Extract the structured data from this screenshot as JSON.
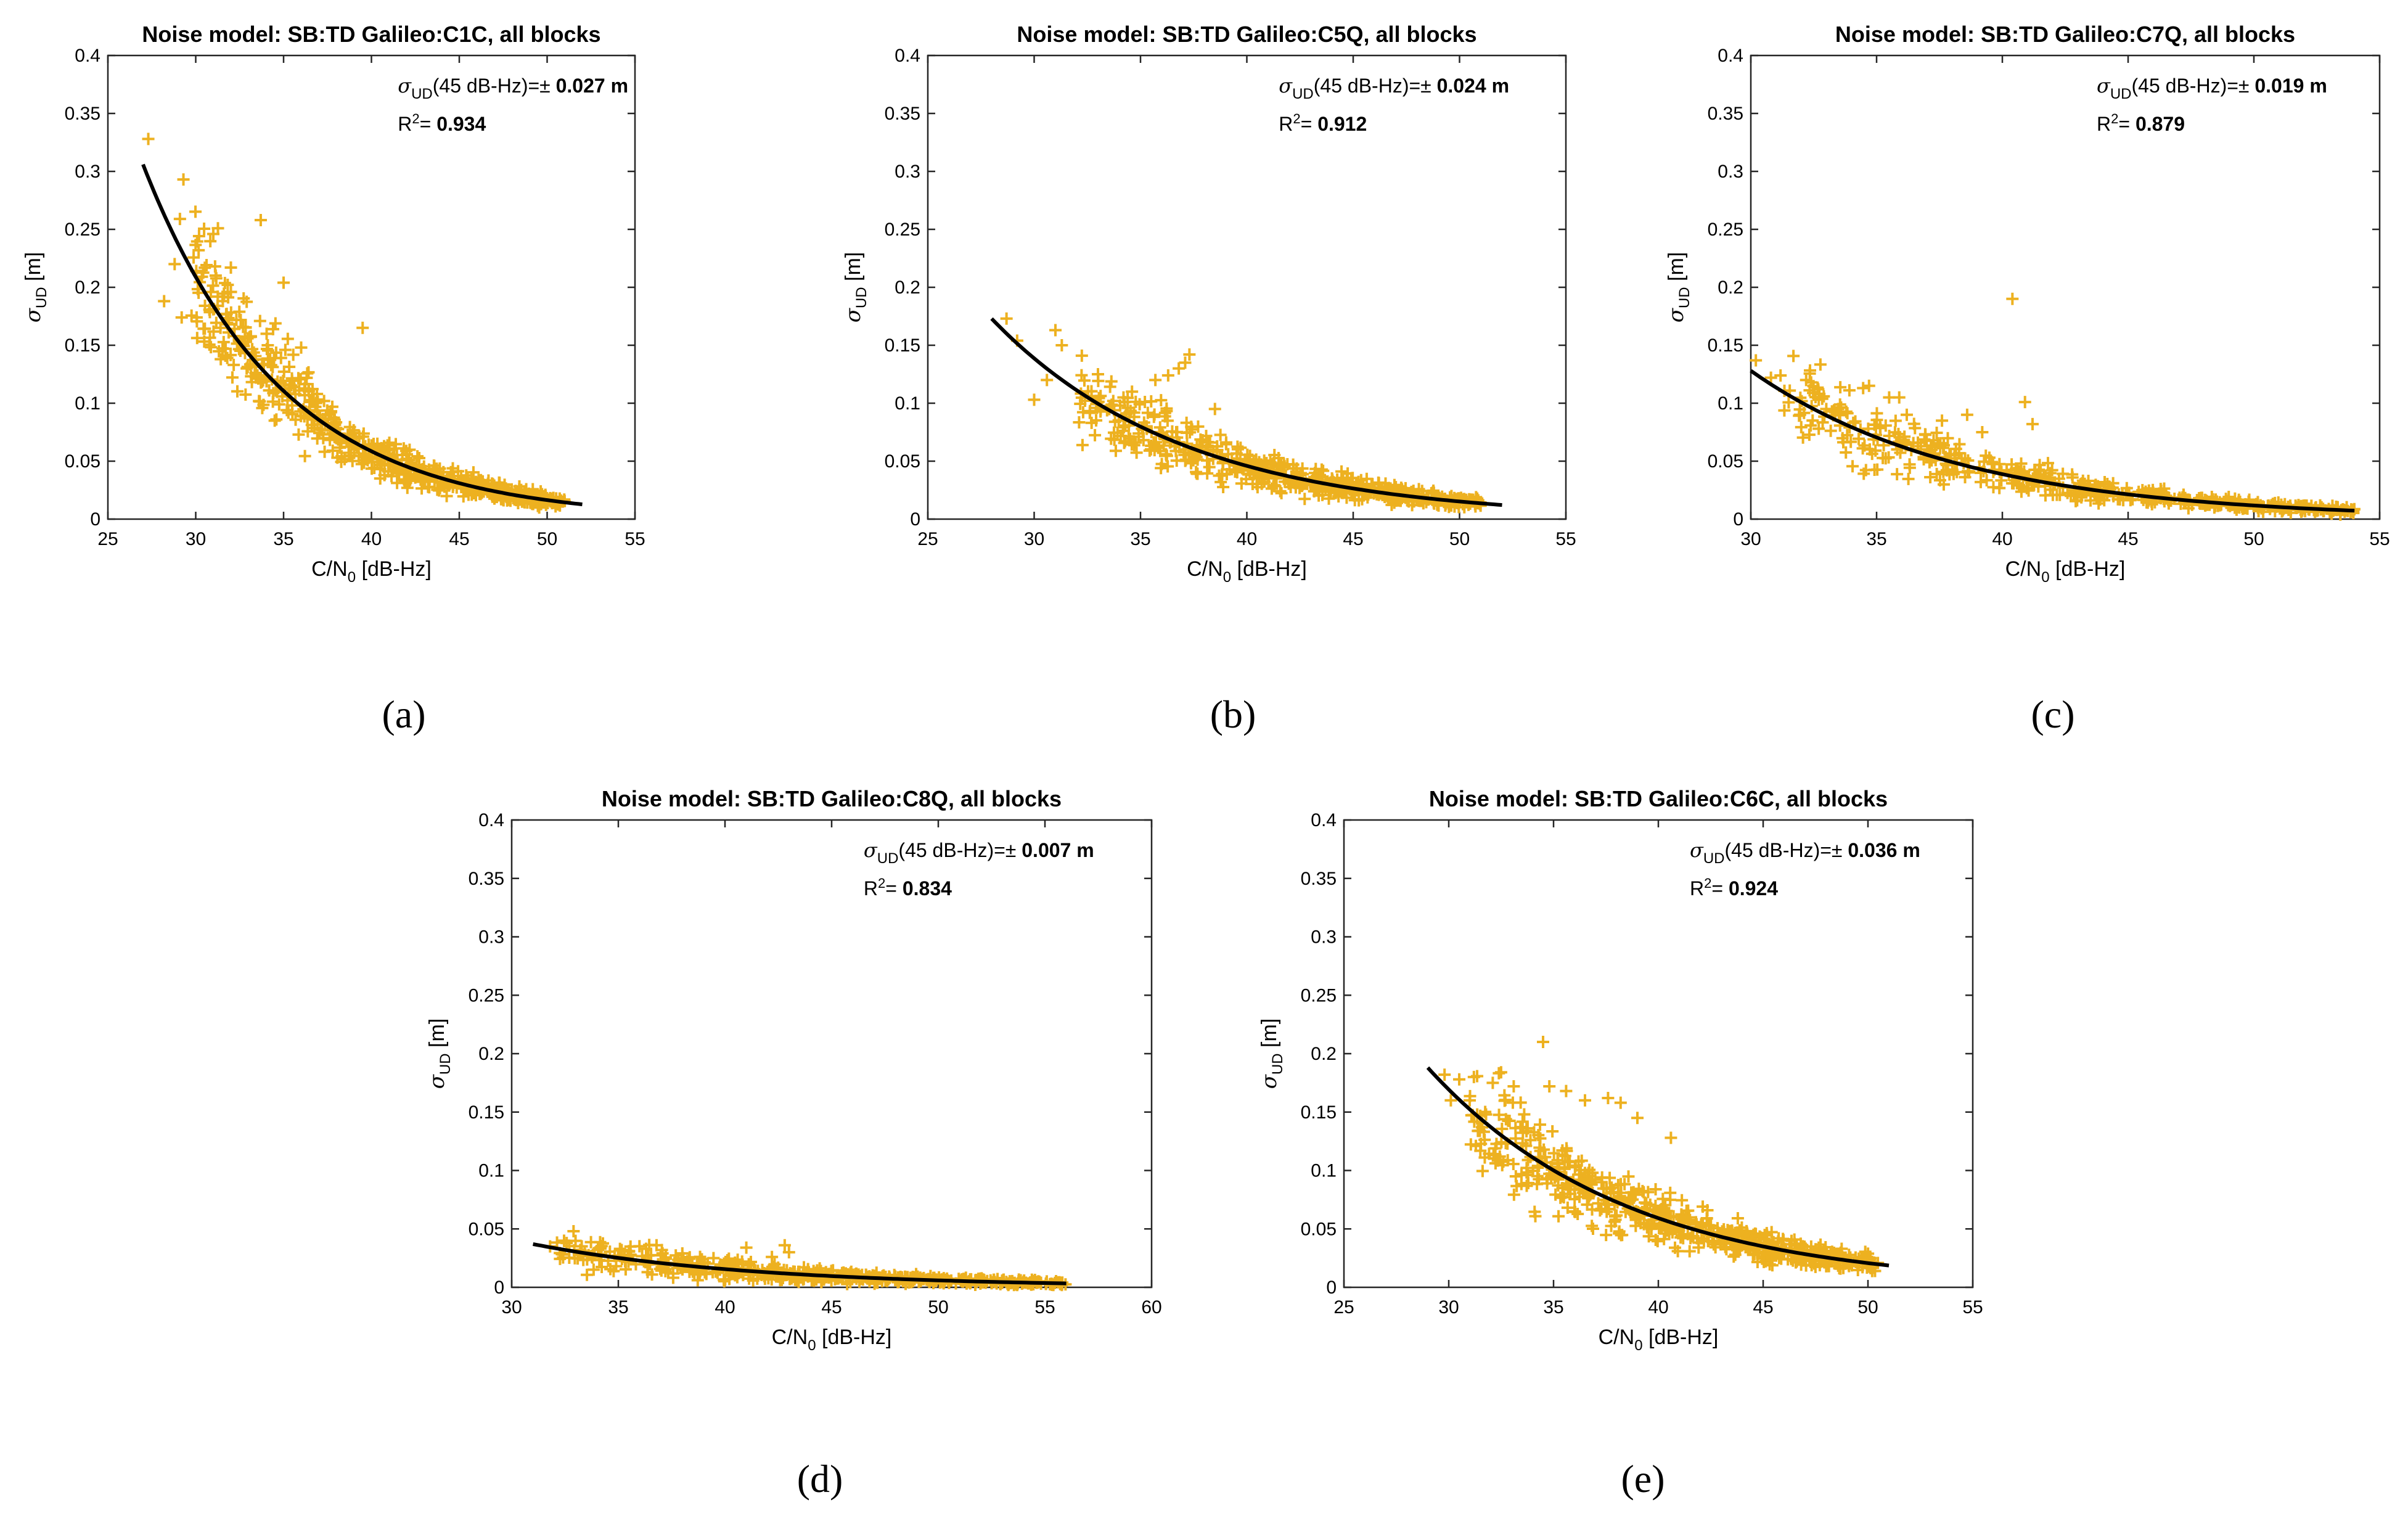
{
  "colors": {
    "points": "#EDB120",
    "fit": "#000000",
    "axis": "#262626"
  },
  "chart_data": [
    {
      "type": "scatter",
      "panel": "(a)",
      "title": "Noise model: SB:TD Galileo:C1C, all blocks",
      "xlabel": "C/N",
      "xlabel_sub": "0",
      "xlabel_unit": " [dB-Hz]",
      "ylabel": "σ",
      "ylabel_sub": "UD",
      "ylabel_unit": " [m]",
      "xlim": [
        25,
        55
      ],
      "ylim": [
        0,
        0.4
      ],
      "xticks": [
        "25",
        "30",
        "35",
        "40",
        "45",
        "50",
        "55"
      ],
      "yticks": [
        "0",
        "0.05",
        "0.1",
        "0.15",
        "0.2",
        "0.25",
        "0.3",
        "0.35",
        "0.4"
      ],
      "ann_sigma_label": "(45 dB-Hz)=±",
      "ann_sigma_value": "0.027 m",
      "ann_r2_label": "R",
      "ann_r2_value": "0.934",
      "fit": {
        "a": 0.306,
        "b": 0.1272,
        "x0": 27,
        "x1": 52
      },
      "cloud": {
        "x0": 29.5,
        "x1": 51,
        "spread": 0.16,
        "n": 700
      },
      "outliers": [
        [
          27.3,
          0.328
        ],
        [
          29.3,
          0.293
        ],
        [
          29.1,
          0.259
        ],
        [
          28.8,
          0.22
        ],
        [
          28.2,
          0.188
        ],
        [
          29.2,
          0.174
        ],
        [
          31.0,
          0.246
        ],
        [
          33.7,
          0.258
        ],
        [
          35.0,
          0.204
        ],
        [
          31.1,
          0.218
        ],
        [
          32.0,
          0.217
        ],
        [
          32.0,
          0.196
        ],
        [
          39.5,
          0.165
        ],
        [
          36.0,
          0.148
        ],
        [
          35.1,
          0.146
        ],
        [
          34.1,
          0.15
        ],
        [
          36.9,
          0.108
        ],
        [
          33.4,
          0.126
        ],
        [
          32.9,
          0.13
        ]
      ]
    },
    {
      "type": "scatter",
      "panel": "(b)",
      "title": "Noise model: SB:TD Galileo:C5Q, all blocks",
      "xlabel": "C/N",
      "xlabel_sub": "0",
      "xlabel_unit": " [dB-Hz]",
      "ylabel": "σ",
      "ylabel_sub": "UD",
      "ylabel_unit": " [m]",
      "xlim": [
        25,
        55
      ],
      "ylim": [
        0,
        0.4
      ],
      "xticks": [
        "25",
        "30",
        "35",
        "40",
        "45",
        "50",
        "55"
      ],
      "yticks": [
        "0",
        "0.05",
        "0.1",
        "0.15",
        "0.2",
        "0.25",
        "0.3",
        "0.35",
        "0.4"
      ],
      "ann_sigma_label": "(45 dB-Hz)=±",
      "ann_sigma_value": "0.024 m",
      "ann_r2_label": "R",
      "ann_r2_value": "0.912",
      "fit": {
        "a": 0.173,
        "b": 0.1105,
        "x0": 28,
        "x1": 52
      },
      "cloud": {
        "x0": 32,
        "x1": 51,
        "spread": 0.18,
        "n": 600
      },
      "outliers": [
        [
          28.7,
          0.173
        ],
        [
          29.2,
          0.154
        ],
        [
          30.6,
          0.12
        ],
        [
          30.0,
          0.103
        ],
        [
          31.0,
          0.163
        ],
        [
          31.3,
          0.15
        ],
        [
          33.0,
          0.125
        ],
        [
          34.2,
          0.105
        ],
        [
          37.3,
          0.142
        ],
        [
          37.1,
          0.135
        ],
        [
          36.3,
          0.124
        ],
        [
          35.7,
          0.12
        ],
        [
          38.5,
          0.095
        ],
        [
          36.8,
          0.13
        ],
        [
          34.6,
          0.11
        ]
      ]
    },
    {
      "type": "scatter",
      "panel": "(c)",
      "title": "Noise model: SB:TD Galileo:C7Q, all blocks",
      "xlabel": "C/N",
      "xlabel_sub": "0",
      "xlabel_unit": " [dB-Hz]",
      "ylabel": "σ",
      "ylabel_sub": "UD",
      "ylabel_unit": " [m]",
      "xlim": [
        30,
        55
      ],
      "ylim": [
        0,
        0.4
      ],
      "xticks": [
        "30",
        "35",
        "40",
        "45",
        "50",
        "55"
      ],
      "yticks": [
        "0",
        "0.05",
        "0.1",
        "0.15",
        "0.2",
        "0.25",
        "0.3",
        "0.35",
        "0.4"
      ],
      "ann_sigma_label": "(45 dB-Hz)=±",
      "ann_sigma_value": "0.019 m",
      "ann_r2_label": "R",
      "ann_r2_value": "0.879",
      "fit": {
        "a": 0.128,
        "b": 0.1194,
        "x0": 30,
        "x1": 54
      },
      "cloud": {
        "x0": 31,
        "x1": 54,
        "spread": 0.2,
        "n": 550
      },
      "outliers": [
        [
          30.2,
          0.137
        ],
        [
          30.8,
          0.122
        ],
        [
          32.2,
          0.12
        ],
        [
          32.7,
          0.103
        ],
        [
          33.0,
          0.095
        ],
        [
          34.7,
          0.115
        ],
        [
          35.5,
          0.105
        ],
        [
          35.9,
          0.105
        ],
        [
          36.2,
          0.09
        ],
        [
          37.6,
          0.085
        ],
        [
          38.6,
          0.09
        ],
        [
          40.4,
          0.19
        ],
        [
          40.9,
          0.101
        ],
        [
          41.2,
          0.082
        ],
        [
          39.2,
          0.075
        ],
        [
          32.7,
          0.078
        ]
      ]
    },
    {
      "type": "scatter",
      "panel": "(d)",
      "title": "Noise model: SB:TD Galileo:C8Q, all blocks",
      "xlabel": "C/N",
      "xlabel_sub": "0",
      "xlabel_unit": " [dB-Hz]",
      "ylabel": "σ",
      "ylabel_sub": "UD",
      "ylabel_unit": " [m]",
      "xlim": [
        30,
        60
      ],
      "ylim": [
        0,
        0.4
      ],
      "xticks": [
        "30",
        "35",
        "40",
        "45",
        "50",
        "55",
        "60"
      ],
      "yticks": [
        "0",
        "0.05",
        "0.1",
        "0.15",
        "0.2",
        "0.25",
        "0.3",
        "0.35",
        "0.4"
      ],
      "ann_sigma_label": "(45 dB-Hz)=±",
      "ann_sigma_value": "0.007 m",
      "ann_r2_label": "R",
      "ann_r2_value": "0.834",
      "fit": {
        "a": 0.037,
        "b": 0.0962,
        "x0": 31,
        "x1": 56
      },
      "cloud": {
        "x0": 32,
        "x1": 56,
        "spread": 0.28,
        "n": 550
      },
      "outliers": [
        [
          32.9,
          0.048
        ],
        [
          31.8,
          0.035
        ],
        [
          35.5,
          0.031
        ],
        [
          36.3,
          0.033
        ],
        [
          38.0,
          0.029
        ],
        [
          41.0,
          0.034
        ],
        [
          42.8,
          0.036
        ],
        [
          43.0,
          0.03
        ],
        [
          42.2,
          0.026
        ],
        [
          40.8,
          0.022
        ]
      ]
    },
    {
      "type": "scatter",
      "panel": "(e)",
      "title": "Noise model: SB:TD Galileo:C6C, all blocks",
      "xlabel": "C/N",
      "xlabel_sub": "0",
      "xlabel_unit": " [dB-Hz]",
      "ylabel": "σ",
      "ylabel_sub": "UD",
      "ylabel_unit": " [m]",
      "xlim": [
        25,
        55
      ],
      "ylim": [
        0,
        0.4
      ],
      "xticks": [
        "25",
        "30",
        "35",
        "40",
        "45",
        "50",
        "55"
      ],
      "yticks": [
        "0",
        "0.05",
        "0.1",
        "0.15",
        "0.2",
        "0.25",
        "0.3",
        "0.35",
        "0.4"
      ],
      "ann_sigma_label": "(45 dB-Hz)=±",
      "ann_sigma_value": "0.036 m",
      "ann_r2_label": "R",
      "ann_r2_value": "0.924",
      "fit": {
        "a": 0.188,
        "b": 0.105,
        "x0": 29,
        "x1": 51
      },
      "cloud": {
        "x0": 31,
        "x1": 50.5,
        "spread": 0.18,
        "n": 650
      },
      "outliers": [
        [
          34.5,
          0.21
        ],
        [
          29.8,
          0.182
        ],
        [
          30.5,
          0.178
        ],
        [
          31.2,
          0.18
        ],
        [
          32.1,
          0.175
        ],
        [
          33.1,
          0.172
        ],
        [
          34.8,
          0.172
        ],
        [
          35.6,
          0.168
        ],
        [
          36.5,
          0.16
        ],
        [
          37.6,
          0.162
        ],
        [
          38.2,
          0.158
        ],
        [
          30.1,
          0.16
        ],
        [
          31.0,
          0.16
        ],
        [
          33.6,
          0.148
        ],
        [
          32.8,
          0.123
        ],
        [
          33.2,
          0.095
        ],
        [
          36.0,
          0.065
        ],
        [
          36.6,
          0.091
        ],
        [
          39.0,
          0.145
        ],
        [
          40.6,
          0.128
        ]
      ]
    }
  ]
}
